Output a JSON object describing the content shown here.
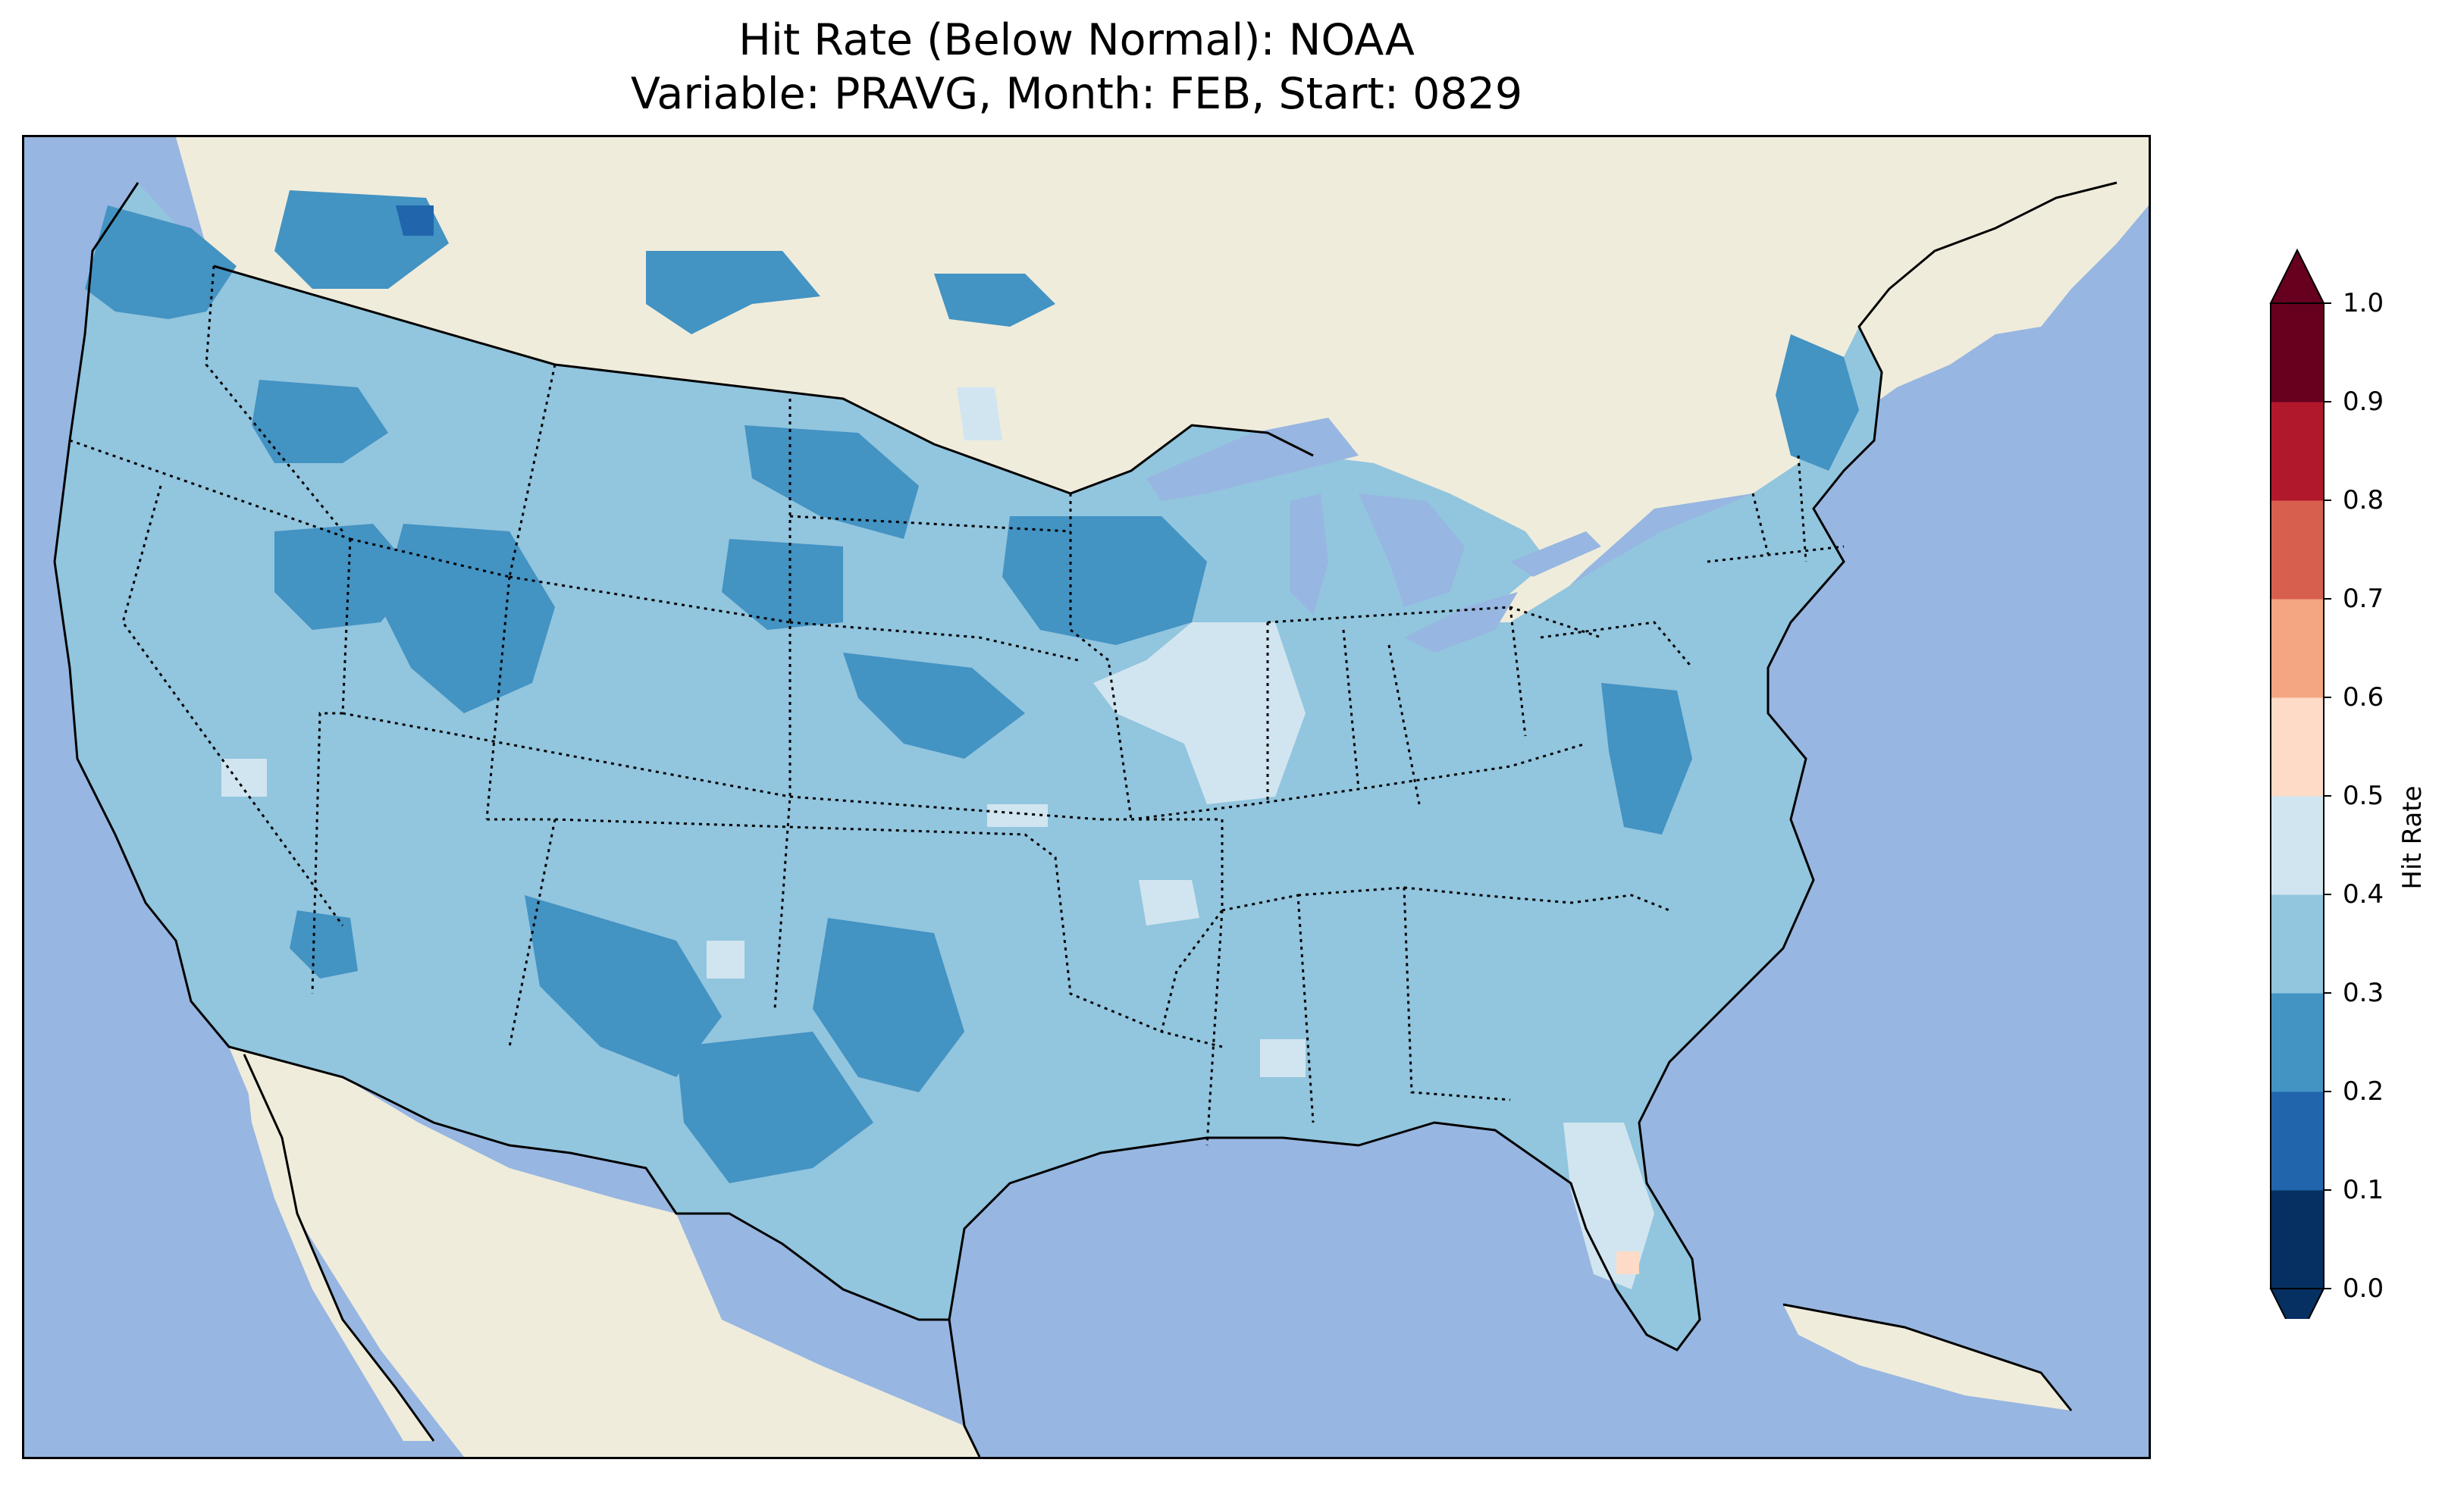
{
  "title": {
    "line1": "Hit Rate (Below Normal): NOAA",
    "line2": "Variable: PRAVG, Month: FEB, Start: 0829"
  },
  "map": {
    "region": "Contiguous United States",
    "colors": {
      "ocean": "#97b6e1",
      "land": "#efecdc",
      "coastline": "#000000",
      "state_borders": "#000000"
    }
  },
  "colorbar": {
    "label": "Hit Rate",
    "ticks": [
      "0.0",
      "0.1",
      "0.2",
      "0.3",
      "0.4",
      "0.5",
      "0.6",
      "0.7",
      "0.8",
      "0.9",
      "1.0"
    ],
    "bins": [
      {
        "range": [
          0.0,
          0.1
        ],
        "color": "#053061"
      },
      {
        "range": [
          0.1,
          0.2
        ],
        "color": "#2166ac"
      },
      {
        "range": [
          0.2,
          0.3
        ],
        "color": "#4393c3"
      },
      {
        "range": [
          0.3,
          0.4
        ],
        "color": "#92c5de"
      },
      {
        "range": [
          0.4,
          0.5
        ],
        "color": "#d1e5f0"
      },
      {
        "range": [
          0.5,
          0.6
        ],
        "color": "#fddbc7"
      },
      {
        "range": [
          0.6,
          0.7
        ],
        "color": "#f4a582"
      },
      {
        "range": [
          0.7,
          0.8
        ],
        "color": "#d6604d"
      },
      {
        "range": [
          0.8,
          0.9
        ],
        "color": "#b2182b"
      },
      {
        "range": [
          0.9,
          1.0
        ],
        "color": "#67001f"
      }
    ],
    "extend": "both"
  }
}
